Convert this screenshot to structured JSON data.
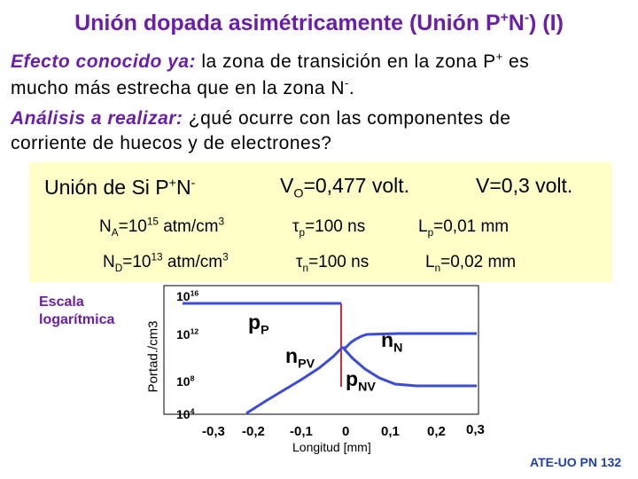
{
  "title": {
    "pre": "Unión dopada asimétricamente (Unión P",
    "s1": "+",
    "mid": "N",
    "s2": "-",
    "post": ") (I)"
  },
  "intro": {
    "line1": {
      "em": "Efecto conocido ya:",
      "text": " la zona de transición en la zona P",
      "sup": "+",
      "post": " es"
    },
    "line2": {
      "text": "mucho más estrecha que en la zona N",
      "sup": "-",
      "post": "."
    },
    "line3": {
      "em": "Análisis a realizar:",
      "text": " ¿qué ocurre con las componentes de"
    },
    "line4": {
      "text": "corriente de huecos y de electrones?"
    }
  },
  "panel": {
    "junction": {
      "pre": "Unión de Si P",
      "s1": "+",
      "mid": "N",
      "s2": "-"
    },
    "vo": {
      "pre": "V",
      "sub": "O",
      "post": "=0,477 volt."
    },
    "v": "V=0,3 volt.",
    "na": {
      "pre": "N",
      "sub": "A",
      "mid": "=10",
      "sup": "15",
      "post": " atm/cm",
      "sup2": "3"
    },
    "nd": {
      "pre": "N",
      "sub": "D",
      "mid": "=10",
      "sup": "13",
      "post": " atm/cm",
      "sup2": "3"
    },
    "tp": {
      "sym": "τ",
      "sub": "p",
      "post": "=100 ns"
    },
    "tn": {
      "sym": "τ",
      "sub": "n",
      "post": "=100 ns"
    },
    "lp": {
      "pre": "L",
      "sub": "p",
      "post": "=0,01 mm"
    },
    "ln": {
      "pre": "L",
      "sub": "n",
      "post": "=0,02 mm"
    }
  },
  "scale_note": {
    "line1": "Escala",
    "line2": "logarítmica"
  },
  "axis_label": "Portad./cm3",
  "y_ticks": [
    {
      "base": "10",
      "exp": "16"
    },
    {
      "base": "10",
      "exp": "12"
    },
    {
      "base": "10",
      "exp": "8"
    },
    {
      "base": "10",
      "exp": "4"
    }
  ],
  "x_ticks": [
    "-0,3",
    "-0,2",
    "-0,1",
    "0",
    "0,1",
    "0,2",
    "0,3"
  ],
  "x_label": "Longitud [mm]",
  "curve_labels": {
    "pp": {
      "main": "p",
      "sub": "P"
    },
    "npv": {
      "main": "n",
      "sub": "PV"
    },
    "nn": {
      "main": "n",
      "sub": "N"
    },
    "pnv": {
      "main": "p",
      "sub": "NV"
    }
  },
  "colors": {
    "accent": "#6b1fa8",
    "curve": "#3b4bd6",
    "junction_line": "#d42a3a",
    "panel_bg": "#ffffc8",
    "footer": "#1f3fae"
  },
  "footer": "ATE-UO PN 132"
}
